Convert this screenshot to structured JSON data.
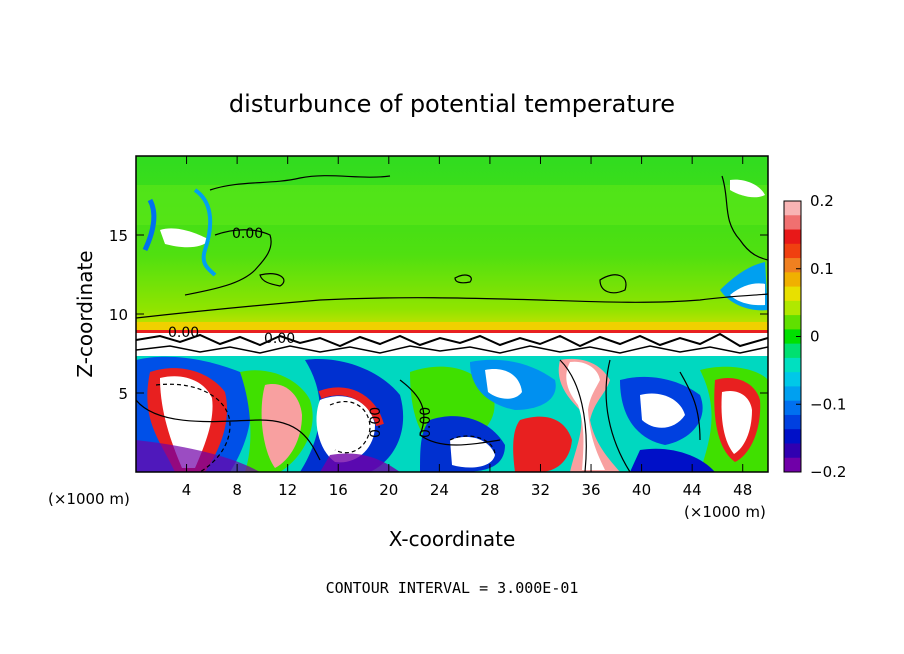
{
  "chart_data": {
    "type": "heatmap",
    "title": "disturbunce of potential temperature",
    "xlabel": "X-coordinate",
    "ylabel": "Z-coordinate",
    "x_unit_label": "(×1000 m)",
    "x_unit_label_right": "(×1000 m)",
    "xlim": [
      0,
      50
    ],
    "ylim": [
      0,
      20
    ],
    "x_ticks": [
      4,
      8,
      12,
      16,
      20,
      24,
      28,
      32,
      36,
      40,
      44,
      48
    ],
    "y_ticks": [
      5,
      10,
      15
    ],
    "colorbar": {
      "range": [
        -0.2,
        0.2
      ],
      "tick_labels": [
        "0.2",
        "0.1",
        "0",
        "−0.1",
        "−0.2"
      ],
      "tick_values": [
        0.2,
        0.1,
        0,
        -0.1,
        -0.2
      ],
      "colors": [
        "#f8b4b4",
        "#f07070",
        "#e81818",
        "#f04010",
        "#f08020",
        "#f0b000",
        "#e8e000",
        "#b0e800",
        "#60e000",
        "#00e000",
        "#00e070",
        "#00e0c0",
        "#00c8e8",
        "#00a0f0",
        "#0070f0",
        "#0040e0",
        "#0010c8",
        "#3000b0",
        "#7000a8"
      ]
    },
    "contour_labels": [
      "0.00",
      "0.00",
      "0.00",
      "0.00",
      "0.00"
    ],
    "footer": "CONTOUR INTERVAL = 3.000E-01"
  }
}
